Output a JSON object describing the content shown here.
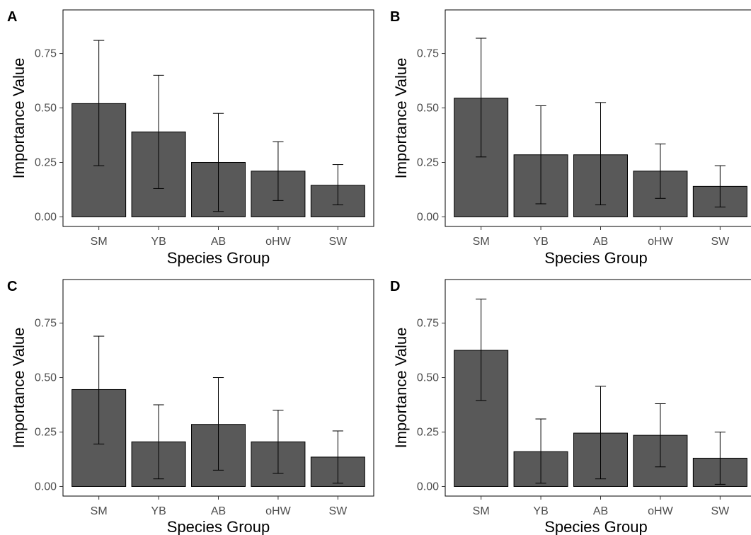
{
  "chart_data": [
    {
      "type": "bar",
      "panel_label": "A",
      "categories": [
        "SM",
        "YB",
        "AB",
        "oHW",
        "SW"
      ],
      "values": [
        0.52,
        0.39,
        0.25,
        0.21,
        0.145
      ],
      "error_low": [
        0.235,
        0.13,
        0.025,
        0.075,
        0.055
      ],
      "error_high": [
        0.81,
        0.65,
        0.475,
        0.345,
        0.24
      ],
      "xlabel": "Species Group",
      "ylabel": "Importance Value",
      "yticks": [
        "0.00",
        "0.25",
        "0.50",
        "0.75"
      ],
      "ylim": [
        -0.044,
        0.95
      ],
      "grid": false,
      "bar_color": "#595959"
    },
    {
      "type": "bar",
      "panel_label": "B",
      "categories": [
        "SM",
        "YB",
        "AB",
        "oHW",
        "SW"
      ],
      "values": [
        0.545,
        0.285,
        0.285,
        0.21,
        0.14
      ],
      "error_low": [
        0.275,
        0.06,
        0.055,
        0.085,
        0.045
      ],
      "error_high": [
        0.82,
        0.51,
        0.525,
        0.335,
        0.235
      ],
      "xlabel": "Species Group",
      "ylabel": "Importance Value",
      "yticks": [
        "0.00",
        "0.25",
        "0.50",
        "0.75"
      ],
      "ylim": [
        -0.044,
        0.95
      ],
      "grid": false,
      "bar_color": "#595959"
    },
    {
      "type": "bar",
      "panel_label": "C",
      "categories": [
        "SM",
        "YB",
        "AB",
        "oHW",
        "SW"
      ],
      "values": [
        0.445,
        0.205,
        0.285,
        0.205,
        0.135
      ],
      "error_low": [
        0.195,
        0.035,
        0.075,
        0.06,
        0.015
      ],
      "error_high": [
        0.69,
        0.375,
        0.5,
        0.35,
        0.255
      ],
      "xlabel": "Species Group",
      "ylabel": "Importance Value",
      "yticks": [
        "0.00",
        "0.25",
        "0.50",
        "0.75"
      ],
      "ylim": [
        -0.044,
        0.95
      ],
      "grid": false,
      "bar_color": "#595959"
    },
    {
      "type": "bar",
      "panel_label": "D",
      "categories": [
        "SM",
        "YB",
        "AB",
        "oHW",
        "SW"
      ],
      "values": [
        0.625,
        0.16,
        0.245,
        0.235,
        0.13
      ],
      "error_low": [
        0.395,
        0.015,
        0.035,
        0.09,
        0.01
      ],
      "error_high": [
        0.86,
        0.31,
        0.46,
        0.38,
        0.25
      ],
      "xlabel": "Species Group",
      "ylabel": "Importance Value",
      "yticks": [
        "0.00",
        "0.25",
        "0.50",
        "0.75"
      ],
      "ylim": [
        -0.044,
        0.95
      ],
      "grid": false,
      "bar_color": "#595959"
    }
  ]
}
